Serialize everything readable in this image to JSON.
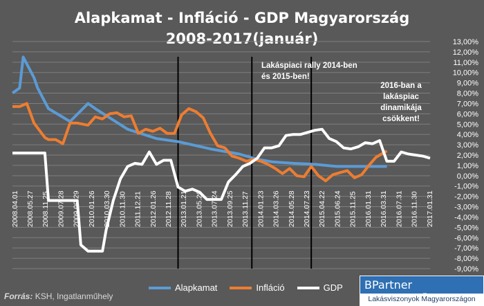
{
  "title_line1": "Alapkamat - Infláció - GDP Magyarország",
  "title_line2": "2008-2017(január)",
  "source_label": "Forrás:",
  "source_text": "KSH, Ingatlanműhely",
  "brand_name": "BPartner Ingatlanműhely",
  "brand_tagline": "Lakásviszonyok Magyarországon",
  "chart_data": {
    "type": "line",
    "ylim": [
      -9,
      13
    ],
    "yticks": [
      "13,00%",
      "12,00%",
      "11,00%",
      "10,00%",
      "9,00%",
      "8,00%",
      "7,00%",
      "6,00%",
      "5,00%",
      "4,00%",
      "3,00%",
      "2,00%",
      "1,00%",
      "0,00%",
      "-1,00%",
      "-2,00%",
      "-3,00%",
      "-4,00%",
      "-5,00%",
      "-6,00%",
      "-7,00%",
      "-8,00%",
      "-9,00%"
    ],
    "x_labels": [
      "2008.04.01",
      "2008.05.27",
      "2008.11.25",
      "2009.07.28",
      "2009.09.29",
      "2010.01.26",
      "2010.03.30",
      "2010.11.30",
      "2011.12.21",
      "2012.01.26",
      "2012.11.28",
      "2013.01.21",
      "2013.05.29",
      "2013.07.24",
      "2013.09.25",
      "2013.11.27",
      "2014.01.23",
      "2014.03.26",
      "2014.05.28",
      "2014.07.23",
      "2015.04.22",
      "2015.06.24",
      "2015.11.25",
      "2016.01.31",
      "2016.03.31",
      "2016.07.31",
      "2016.11.30",
      "2017.01.31"
    ],
    "gridlines": true,
    "legend_position": "bottom",
    "series": [
      {
        "name": "Alapkamat",
        "color": "#5b9bd5",
        "points": [
          [
            0,
            8.0
          ],
          [
            2,
            8.5
          ],
          [
            3,
            11.5
          ],
          [
            6,
            9.5
          ],
          [
            7,
            8.5
          ],
          [
            10,
            6.5
          ],
          [
            16,
            5.25
          ],
          [
            21,
            7.0
          ],
          [
            23,
            6.5
          ],
          [
            32,
            4.5
          ],
          [
            40,
            3.6
          ],
          [
            46,
            3.3
          ],
          [
            55,
            2.6
          ],
          [
            63,
            2.1
          ],
          [
            68,
            1.6
          ],
          [
            72,
            1.35
          ],
          [
            78,
            1.2
          ],
          [
            84,
            1.1
          ],
          [
            90,
            0.9
          ],
          [
            96,
            0.9
          ],
          [
            104,
            0.9
          ]
        ]
      },
      {
        "name": "Infláció",
        "color": "#ed7d31",
        "points": [
          [
            0,
            6.7
          ],
          [
            2,
            6.7
          ],
          [
            4,
            7.0
          ],
          [
            6,
            5.1
          ],
          [
            9,
            3.7
          ],
          [
            10,
            3.5
          ],
          [
            12,
            3.5
          ],
          [
            14,
            3.1
          ],
          [
            16,
            5.1
          ],
          [
            18,
            5.1
          ],
          [
            21,
            4.9
          ],
          [
            23,
            5.7
          ],
          [
            25,
            5.5
          ],
          [
            27,
            6.0
          ],
          [
            29,
            6.1
          ],
          [
            31,
            5.7
          ],
          [
            33,
            5.8
          ],
          [
            35,
            4.1
          ],
          [
            37,
            4.5
          ],
          [
            39,
            4.3
          ],
          [
            41,
            4.6
          ],
          [
            43,
            4.1
          ],
          [
            45,
            4.1
          ],
          [
            47,
            5.9
          ],
          [
            49,
            6.5
          ],
          [
            51,
            6.2
          ],
          [
            53,
            5.6
          ],
          [
            55,
            4.1
          ],
          [
            57,
            2.9
          ],
          [
            59,
            2.7
          ],
          [
            61,
            1.9
          ],
          [
            63,
            1.7
          ],
          [
            65,
            1.4
          ],
          [
            67,
            1.6
          ],
          [
            69,
            1.4
          ],
          [
            71,
            1.1
          ],
          [
            73,
            0.7
          ],
          [
            75,
            0.2
          ],
          [
            77,
            0.7
          ],
          [
            79,
            0.0
          ],
          [
            81,
            -0.1
          ],
          [
            83,
            0.9
          ],
          [
            85,
            0.0
          ],
          [
            87,
            -0.5
          ],
          [
            89,
            0.1
          ],
          [
            91,
            0.3
          ],
          [
            93,
            0.5
          ],
          [
            95,
            -0.2
          ],
          [
            97,
            0.1
          ],
          [
            99,
            1.0
          ],
          [
            101,
            1.8
          ],
          [
            104,
            2.4
          ]
        ]
      },
      {
        "name": "GDP",
        "color": "#ffffff",
        "points": [
          [
            0,
            2.2
          ],
          [
            9,
            2.2
          ],
          [
            10,
            -2.4
          ],
          [
            18,
            -2.4
          ],
          [
            19,
            -6.7
          ],
          [
            21,
            -7.3
          ],
          [
            25,
            -7.3
          ],
          [
            26,
            -5.3
          ],
          [
            28,
            -2.4
          ],
          [
            30,
            -0.3
          ],
          [
            32,
            0.9
          ],
          [
            34,
            1.2
          ],
          [
            36,
            1.1
          ],
          [
            38,
            2.3
          ],
          [
            40,
            1.1
          ],
          [
            42,
            1.5
          ],
          [
            44,
            1.5
          ],
          [
            46,
            -1.1
          ],
          [
            48,
            -1.5
          ],
          [
            50,
            -1.3
          ],
          [
            52,
            -1.6
          ],
          [
            54,
            -2.3
          ],
          [
            58,
            -2.3
          ],
          [
            60,
            -0.6
          ],
          [
            62,
            0.1
          ],
          [
            64,
            0.9
          ],
          [
            66,
            1.2
          ],
          [
            68,
            1.7
          ],
          [
            70,
            2.7
          ],
          [
            72,
            2.7
          ],
          [
            74,
            2.9
          ],
          [
            76,
            3.9
          ],
          [
            78,
            4.0
          ],
          [
            80,
            4.0
          ],
          [
            82,
            4.2
          ],
          [
            84,
            4.4
          ],
          [
            86,
            4.5
          ],
          [
            88,
            3.6
          ],
          [
            90,
            3.3
          ],
          [
            92,
            2.7
          ],
          [
            94,
            2.6
          ],
          [
            96,
            2.8
          ],
          [
            98,
            3.2
          ],
          [
            100,
            3.1
          ],
          [
            102,
            3.4
          ],
          [
            104,
            1.4
          ],
          [
            106,
            1.4
          ],
          [
            108,
            2.3
          ],
          [
            110,
            2.1
          ],
          [
            112,
            2.0
          ],
          [
            114,
            1.9
          ],
          [
            116,
            1.7
          ]
        ]
      }
    ],
    "vlines_x": [
      46,
      66.5,
      83
    ],
    "annotations": [
      "Lakáspiaci rally 2014-ben és 2015-ben!",
      "2016-ban a lakáspiac dinamikája csökkent!"
    ]
  },
  "legend": [
    {
      "label": "Alapkamat",
      "color": "#5b9bd5"
    },
    {
      "label": "Infláció",
      "color": "#ed7d31"
    },
    {
      "label": "GDP",
      "color": "#ffffff"
    }
  ]
}
